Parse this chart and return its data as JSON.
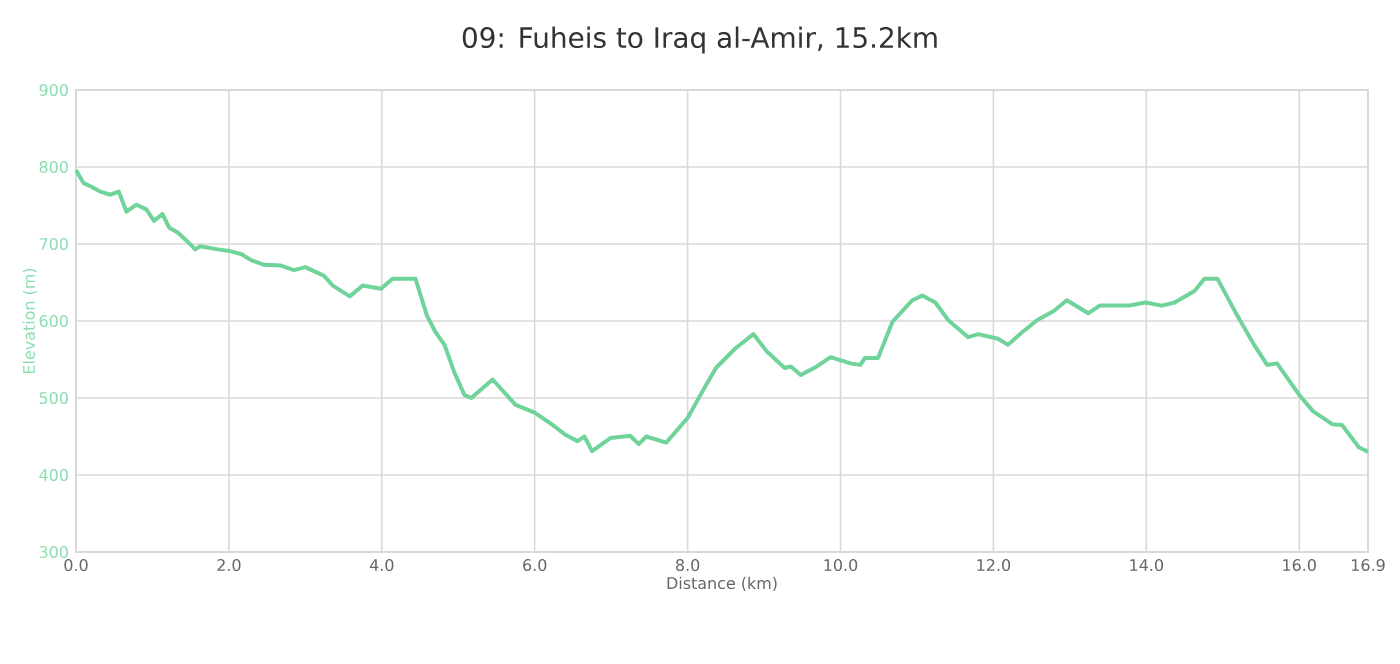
{
  "chart_data": {
    "type": "line",
    "title": "09: Fuheis to Iraq al-Amir, 15.2km",
    "xlabel": "Distance (km)",
    "ylabel": "Elevation (m)",
    "x": [
      0,
      0.1,
      0.19,
      0.32,
      0.45,
      0.56,
      0.66,
      0.79,
      0.92,
      1.02,
      1.13,
      1.22,
      1.33,
      1.45,
      1.56,
      1.62,
      1.86,
      2.0,
      2.16,
      2.29,
      2.46,
      2.68,
      2.85,
      3.0,
      3.24,
      3.36,
      3.58,
      3.75,
      3.99,
      4.14,
      4.31,
      4.44,
      4.59,
      4.7,
      4.82,
      4.95,
      5.08,
      5.17,
      5.45,
      5.75,
      6.0,
      6.22,
      6.39,
      6.56,
      6.65,
      6.75,
      6.99,
      7.25,
      7.36,
      7.46,
      7.72,
      8.0,
      8.19,
      8.37,
      8.62,
      8.86,
      9.04,
      9.27,
      9.35,
      9.48,
      9.69,
      9.87,
      10.13,
      10.26,
      10.32,
      10.49,
      10.68,
      10.94,
      11.07,
      11.24,
      11.41,
      11.67,
      11.8,
      12.06,
      12.19,
      12.36,
      12.57,
      12.79,
      12.96,
      13.24,
      13.39,
      13.77,
      13.99,
      14.2,
      14.37,
      14.63,
      14.76,
      14.93,
      15.19,
      15.41,
      15.58,
      15.71,
      16.0,
      16.18,
      16.43,
      16.56,
      16.78,
      16.9
    ],
    "series": [
      {
        "color": "#6fd39a",
        "values": [
          796,
          779,
          775,
          768,
          764,
          768,
          742,
          751,
          745,
          730,
          739,
          721,
          715,
          704,
          693,
          697,
          693,
          691,
          687,
          679,
          673,
          672,
          666,
          670,
          659,
          646,
          632,
          646,
          642,
          655,
          655,
          655,
          607,
          586,
          569,
          533,
          504,
          500,
          524,
          491,
          481,
          466,
          453,
          444,
          450,
          431,
          448,
          451,
          440,
          450,
          442,
          474,
          508,
          539,
          564,
          583,
          560,
          539,
          541,
          530,
          541,
          553,
          545,
          543,
          552,
          552,
          599,
          627,
          633,
          624,
          601,
          579,
          583,
          577,
          569,
          584,
          601,
          613,
          627,
          610,
          620,
          620,
          624,
          620,
          624,
          639,
          655,
          655,
          607,
          569,
          543,
          545,
          504,
          483,
          466,
          465,
          436,
          430
        ]
      }
    ],
    "xlim": [
      0,
      16.9
    ],
    "ylim": [
      300,
      900
    ],
    "xticks": [
      {
        "value": 0,
        "label": "0.0"
      },
      {
        "value": 2,
        "label": "2.0"
      },
      {
        "value": 4,
        "label": "4.0"
      },
      {
        "value": 6,
        "label": "6.0"
      },
      {
        "value": 8,
        "label": "8.0"
      },
      {
        "value": 10,
        "label": "10.0"
      },
      {
        "value": 12,
        "label": "12.0"
      },
      {
        "value": 14,
        "label": "14.0"
      },
      {
        "value": 16,
        "label": "16.0"
      },
      {
        "value": 16.9,
        "label": "16.9"
      }
    ],
    "yticks": [
      300,
      400,
      500,
      600,
      700,
      800,
      900
    ],
    "grid": true,
    "marker": "none",
    "line_style": "solid"
  }
}
